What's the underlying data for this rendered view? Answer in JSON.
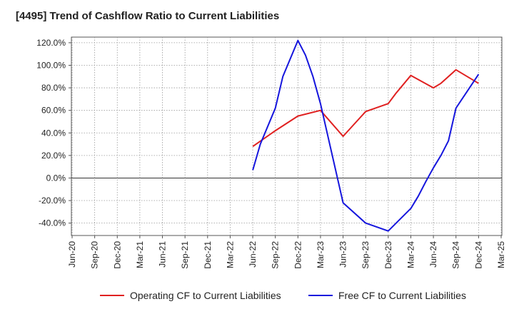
{
  "chart_data": {
    "type": "line",
    "title": "[4495]  Trend of Cashflow Ratio to Current Liabilities",
    "xlabel": "",
    "ylabel": "",
    "x_ticks": [
      "Jun-20",
      "Sep-20",
      "Dec-20",
      "Mar-21",
      "Jun-21",
      "Sep-21",
      "Dec-21",
      "Mar-22",
      "Jun-22",
      "Sep-22",
      "Dec-22",
      "Mar-23",
      "Jun-23",
      "Sep-23",
      "Dec-23",
      "Mar-24",
      "Jun-24",
      "Sep-24",
      "Dec-24",
      "Mar-25"
    ],
    "y_ticks": [
      "120.0%",
      "100.0%",
      "80.0%",
      "60.0%",
      "40.0%",
      "20.0%",
      "0.0%",
      "-20.0%",
      "-40.0%"
    ],
    "ylim": [
      -51,
      125
    ],
    "grid": true,
    "legend_position": "bottom",
    "series": [
      {
        "name": "Operating CF to Current Liabilities",
        "color": "#e02020",
        "x": [
          "Jun-22",
          "Sep-22",
          "Dec-22",
          "Mar-23",
          "Jun-23",
          "Sep-23",
          "Dec-23",
          "Jan-24",
          "Mar-24",
          "Jun-24",
          "Jul-24",
          "Sep-24",
          "Dec-24"
        ],
        "values": [
          28,
          42,
          55,
          60,
          37,
          59,
          66,
          75,
          91,
          80,
          84,
          96,
          84
        ]
      },
      {
        "name": "Free CF to Current Liabilities",
        "color": "#1515dd",
        "x": [
          "Jun-22",
          "Jul-22",
          "Sep-22",
          "Oct-22",
          "Dec-22",
          "Jan-23",
          "Feb-23",
          "Mar-23",
          "Jun-23",
          "Sep-23",
          "Dec-23",
          "Mar-24",
          "Apr-24",
          "May-24",
          "Jun-24",
          "Jul-24",
          "Aug-24",
          "Sep-24",
          "Dec-24"
        ],
        "values": [
          7,
          30,
          62,
          90,
          122,
          109,
          90,
          66,
          -22,
          -40,
          -47,
          -27,
          -16,
          -3,
          9,
          20,
          33,
          62,
          92
        ]
      }
    ]
  }
}
